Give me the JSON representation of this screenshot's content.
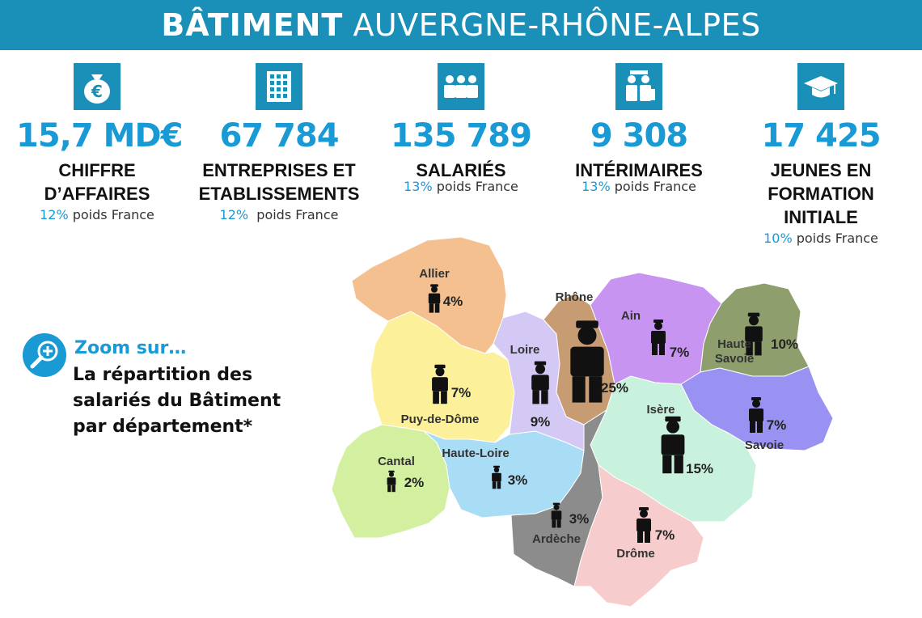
{
  "header": {
    "title_bold": "BÂTIMENT",
    "title_light": "AUVERGNE-RHÔNE-ALPES"
  },
  "stats": [
    {
      "icon": "money-bag-euro-icon",
      "value": "15,7 MD€",
      "label_lines": [
        "CHIFFRE",
        "D’AFFAIRES"
      ],
      "pct": "12%",
      "sub": " poids France"
    },
    {
      "icon": "building-icon",
      "value": "67 784",
      "label_lines": [
        "ENTREPRISES ET",
        "ETABLISSEMENTS"
      ],
      "pct": "12%",
      "sub": "  poids France"
    },
    {
      "icon": "workers-group-icon",
      "value": "135 789",
      "label_lines": [
        "SALARIÉS"
      ],
      "pct": "13%",
      "sub": " poids France"
    },
    {
      "icon": "temporary-workers-icon",
      "value": "9 308",
      "label_lines": [
        "INTÉRIMAIRES"
      ],
      "pct": "13%",
      "sub": " poids France"
    },
    {
      "icon": "graduation-cap-icon",
      "value": "17 425",
      "label_lines": [
        "JEUNES EN",
        "FORMATION",
        "INITIALE"
      ],
      "pct": "10%",
      "sub": " poids France"
    }
  ],
  "zoom": {
    "icon": "magnifier-plus-icon",
    "title": "Zoom sur…",
    "text_lines": [
      "La répartition des",
      "salariés du Bâtiment",
      "par département*"
    ]
  },
  "map": {
    "departments": [
      {
        "name": "Allier",
        "pct": "4%",
        "color": "#f4c08f"
      },
      {
        "name": "Puy-de-Dôme",
        "pct": "7%",
        "color": "#fdf09a"
      },
      {
        "name": "Cantal",
        "pct": "2%",
        "color": "#d3f0a0"
      },
      {
        "name": "Haute-Loire",
        "pct": "3%",
        "color": "#a9dcf5"
      },
      {
        "name": "Loire",
        "pct": "9%",
        "color": "#d4c8f5"
      },
      {
        "name": "Rhône",
        "pct": "25%",
        "color": "#c89c72"
      },
      {
        "name": "Ain",
        "pct": "7%",
        "color": "#c894f2"
      },
      {
        "name": "Haute Savoie",
        "name_lines": [
          "Haute",
          "Savoie"
        ],
        "pct": "10%",
        "color": "#8e9e6c"
      },
      {
        "name": "Savoie",
        "pct": "7%",
        "color": "#9a92f2"
      },
      {
        "name": "Isère",
        "pct": "15%",
        "color": "#c9f2de"
      },
      {
        "name": "Ardèche",
        "pct": "3%",
        "color": "#8c8c8c"
      },
      {
        "name": "Drôme",
        "pct": "7%",
        "color": "#f6cccc"
      }
    ]
  }
}
